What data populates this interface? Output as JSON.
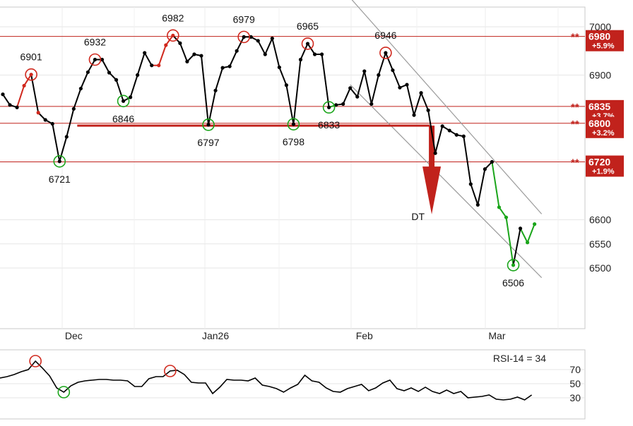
{
  "chart_data": [
    {
      "type": "line",
      "ylim": [
        6380,
        7050
      ],
      "y_ticks": [
        6500,
        6550,
        6600,
        6900,
        7000
      ],
      "x_month_labels": [
        "Dec",
        "Jan26",
        "Feb",
        "Mar"
      ],
      "grid": "horizontal + vertical month lines",
      "series": [
        {
          "color_segments": [
            "black",
            "red",
            "green"
          ],
          "points": [
            {
              "x": 0,
              "y": 6860
            },
            {
              "x": 1,
              "y": 6838
            },
            {
              "x": 2,
              "y": 6833
            },
            {
              "x": 3,
              "y": 6878
            },
            {
              "x": 4,
              "y": 6901
            },
            {
              "x": 5,
              "y": 6822
            },
            {
              "x": 6,
              "y": 6807
            },
            {
              "x": 7,
              "y": 6799
            },
            {
              "x": 8,
              "y": 6721
            },
            {
              "x": 9,
              "y": 6772
            },
            {
              "x": 10,
              "y": 6830
            },
            {
              "x": 11,
              "y": 6872
            },
            {
              "x": 12,
              "y": 6906
            },
            {
              "x": 13,
              "y": 6932
            },
            {
              "x": 14,
              "y": 6932
            },
            {
              "x": 15,
              "y": 6905
            },
            {
              "x": 16,
              "y": 6890
            },
            {
              "x": 17,
              "y": 6846
            },
            {
              "x": 18,
              "y": 6854
            },
            {
              "x": 19,
              "y": 6900
            },
            {
              "x": 20,
              "y": 6946
            },
            {
              "x": 21,
              "y": 6920
            },
            {
              "x": 22,
              "y": 6920
            },
            {
              "x": 23,
              "y": 6962
            },
            {
              "x": 24,
              "y": 6982
            },
            {
              "x": 25,
              "y": 6966
            },
            {
              "x": 26,
              "y": 6928
            },
            {
              "x": 27,
              "y": 6943
            },
            {
              "x": 28,
              "y": 6940
            },
            {
              "x": 29,
              "y": 6797
            },
            {
              "x": 30,
              "y": 6868
            },
            {
              "x": 31,
              "y": 6915
            },
            {
              "x": 32,
              "y": 6918
            },
            {
              "x": 33,
              "y": 6950
            },
            {
              "x": 34,
              "y": 6979
            },
            {
              "x": 35,
              "y": 6979
            },
            {
              "x": 36,
              "y": 6971
            },
            {
              "x": 37,
              "y": 6943
            },
            {
              "x": 38,
              "y": 6976
            },
            {
              "x": 39,
              "y": 6916
            },
            {
              "x": 40,
              "y": 6879
            },
            {
              "x": 41,
              "y": 6798
            },
            {
              "x": 42,
              "y": 6932
            },
            {
              "x": 43,
              "y": 6965
            },
            {
              "x": 44,
              "y": 6943
            },
            {
              "x": 45,
              "y": 6943
            },
            {
              "x": 46,
              "y": 6833
            },
            {
              "x": 47,
              "y": 6838
            },
            {
              "x": 48,
              "y": 6840
            },
            {
              "x": 49,
              "y": 6873
            },
            {
              "x": 50,
              "y": 6855
            },
            {
              "x": 51,
              "y": 6908
            },
            {
              "x": 52,
              "y": 6840
            },
            {
              "x": 53,
              "y": 6900
            },
            {
              "x": 54,
              "y": 6946
            },
            {
              "x": 55,
              "y": 6910
            },
            {
              "x": 56,
              "y": 6874
            },
            {
              "x": 57,
              "y": 6880
            },
            {
              "x": 58,
              "y": 6817
            },
            {
              "x": 59,
              "y": 6863
            },
            {
              "x": 60,
              "y": 6827
            },
            {
              "x": 61,
              "y": 6738
            },
            {
              "x": 62,
              "y": 6794
            },
            {
              "x": 63,
              "y": 6785
            },
            {
              "x": 64,
              "y": 6776
            },
            {
              "x": 65,
              "y": 6773
            },
            {
              "x": 66,
              "y": 6674
            },
            {
              "x": 67,
              "y": 6631
            },
            {
              "x": 68,
              "y": 6705
            },
            {
              "x": 69,
              "y": 6720
            },
            {
              "x": 70,
              "y": 6626
            },
            {
              "x": 71,
              "y": 6605
            },
            {
              "x": 72,
              "y": 6506
            },
            {
              "x": 73,
              "y": 6582
            },
            {
              "x": 74,
              "y": 6553
            },
            {
              "x": 75,
              "y": 6591
            }
          ]
        }
      ],
      "annotations": [
        {
          "text": "6901",
          "x": 4,
          "y": 6901,
          "marker": "red-circle",
          "label_pos": "above"
        },
        {
          "text": "6721",
          "x": 8,
          "y": 6721,
          "marker": "green-circle",
          "label_pos": "below"
        },
        {
          "text": "6932",
          "x": 13,
          "y": 6932,
          "marker": "red-circle",
          "label_pos": "above"
        },
        {
          "text": "6846",
          "x": 17,
          "y": 6846,
          "marker": "green-circle",
          "label_pos": "below"
        },
        {
          "text": "6982",
          "x": 24,
          "y": 6982,
          "marker": "red-circle",
          "label_pos": "above"
        },
        {
          "text": "6797",
          "x": 29,
          "y": 6797,
          "marker": "green-circle",
          "label_pos": "below"
        },
        {
          "text": "6979",
          "x": 34,
          "y": 6979,
          "marker": "red-circle",
          "label_pos": "above"
        },
        {
          "text": "6798",
          "x": 41,
          "y": 6798,
          "marker": "green-circle",
          "label_pos": "below"
        },
        {
          "text": "6965",
          "x": 43,
          "y": 6965,
          "marker": "red-circle",
          "label_pos": "above"
        },
        {
          "text": "6833",
          "x": 46,
          "y": 6833,
          "marker": "green-circle",
          "label_pos": "below"
        },
        {
          "text": "6946",
          "x": 54,
          "y": 6946,
          "marker": "red-circle",
          "label_pos": "above"
        },
        {
          "text": "6506",
          "x": 72,
          "y": 6506,
          "marker": "green-circle",
          "label_pos": "below"
        }
      ],
      "levels": [
        {
          "price": "6980",
          "pct": "+5.9%",
          "value": 6980,
          "stars": "**"
        },
        {
          "price": "6835",
          "pct": "+3.7%",
          "value": 6835,
          "stars": "**"
        },
        {
          "price": "6800",
          "pct": "+3.2%",
          "value": 6800,
          "stars": "**"
        },
        {
          "price": "6720",
          "pct": "+1.9%",
          "value": 6720,
          "stars": "**"
        }
      ],
      "trend_channel": [
        {
          "from": {
            "x": 49,
            "y": 7060
          },
          "to": {
            "x": 76,
            "y": 6612
          }
        },
        {
          "from": {
            "x": 49,
            "y": 6880
          },
          "to": {
            "x": 76,
            "y": 6480
          }
        }
      ],
      "double_top": {
        "label": "DT",
        "neckline": 6798,
        "from_x": 9,
        "to_x": 59,
        "target": 6620
      },
      "colors": {
        "price": "#000000",
        "up": "#1aa51a",
        "down": "#d0281d",
        "level": "#c1221c",
        "channel": "#9a9a9a"
      }
    },
    {
      "type": "line",
      "title": "RSI-14 = 34",
      "ylim": [
        10,
        100
      ],
      "y_ticks": [
        30,
        50,
        70
      ],
      "values": [
        58,
        60,
        63,
        67,
        70,
        82,
        72,
        61,
        44,
        38,
        47,
        52,
        54,
        55,
        56,
        56,
        55,
        55,
        54,
        46,
        46,
        57,
        60,
        60,
        68,
        69,
        63,
        52,
        51,
        51,
        36,
        45,
        56,
        55,
        55,
        54,
        58,
        48,
        46,
        43,
        38,
        44,
        49,
        62,
        54,
        52,
        44,
        39,
        38,
        43,
        46,
        49,
        40,
        44,
        51,
        55,
        43,
        40,
        44,
        39,
        45,
        39,
        36,
        41,
        36,
        39,
        30,
        31,
        32,
        34,
        28,
        27,
        28,
        31,
        27,
        34
      ],
      "markers": [
        {
          "x": 5,
          "color": "red-circle"
        },
        {
          "x": 9,
          "color": "green-circle"
        },
        {
          "x": 24,
          "color": "red-circle"
        }
      ]
    }
  ]
}
